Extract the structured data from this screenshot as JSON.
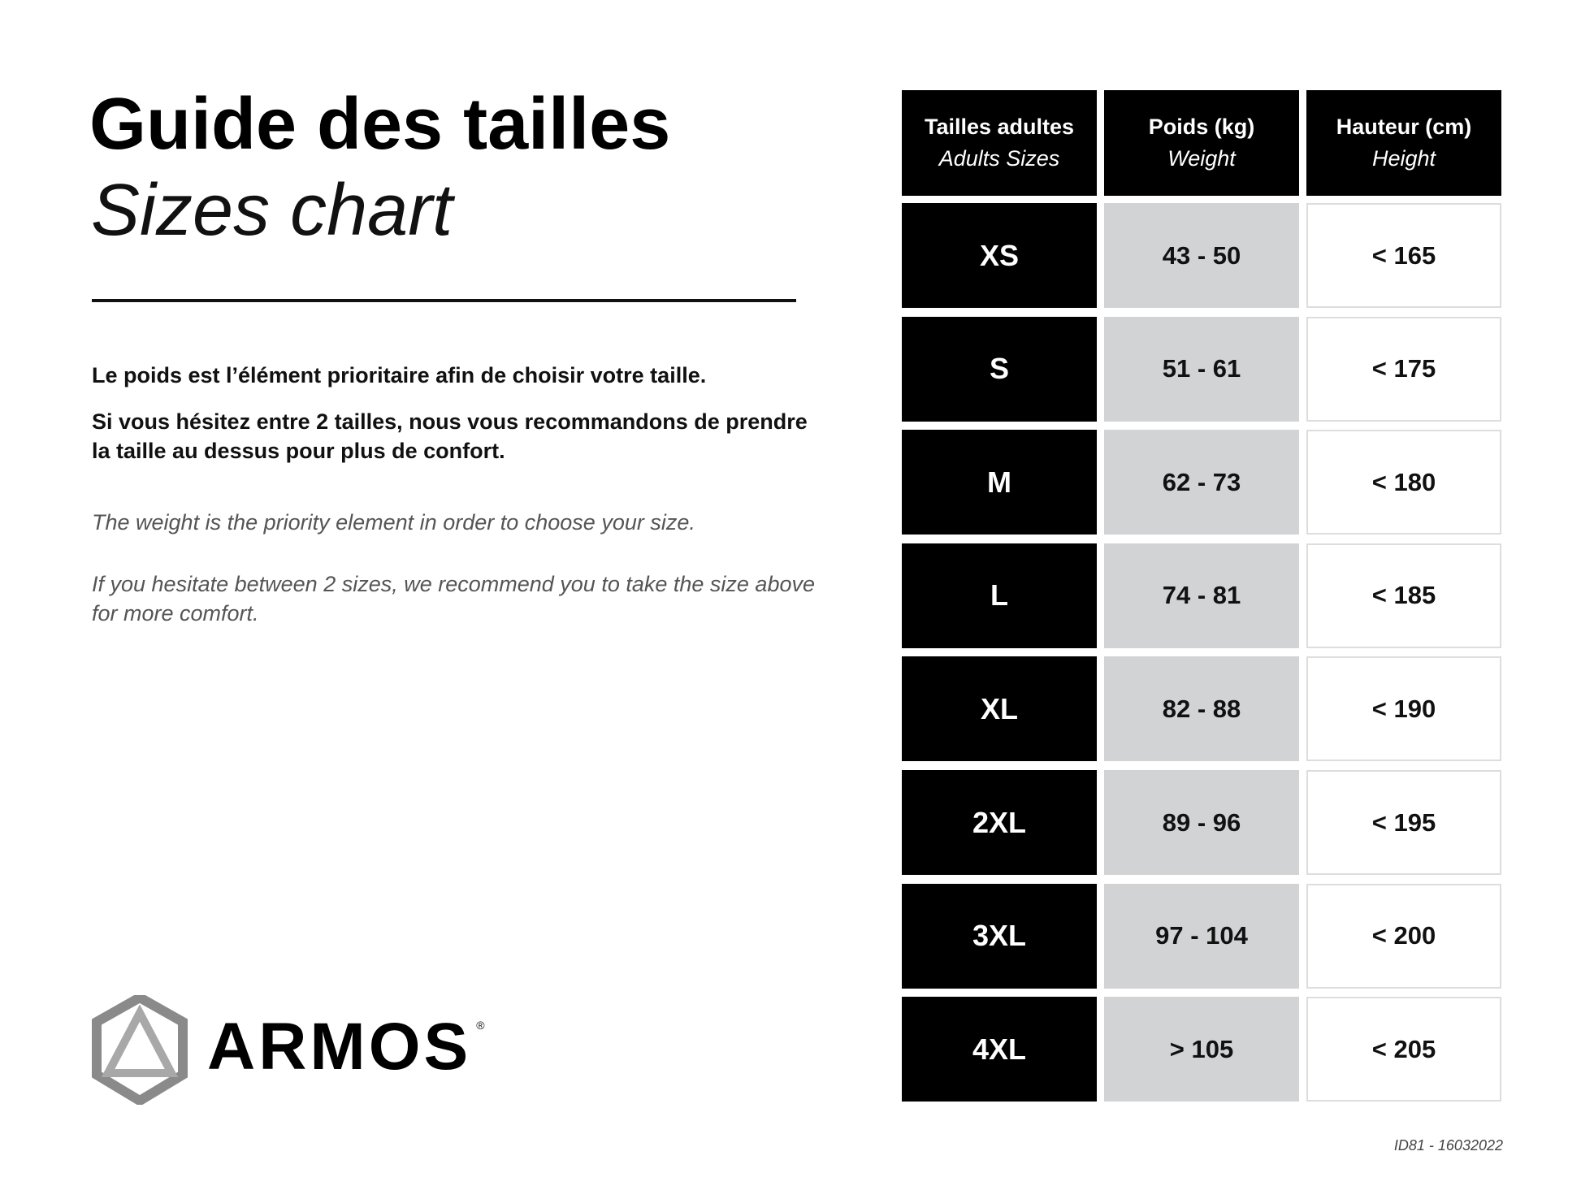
{
  "heading": {
    "title": "Guide des tailles",
    "subtitle": "Sizes chart"
  },
  "text": {
    "fr_1": "Le poids est l’élément prioritaire afin de choisir votre taille.",
    "fr_2": "Si vous hésitez entre 2 tailles, nous vous recommandons de prendre la taille au dessus pour plus de confort.",
    "en_1": "The weight is the priority element in order to choose your size.",
    "en_2": "If you hesitate between 2 sizes, we recommend you to take the size above for more comfort."
  },
  "logo": {
    "brand": "ARMOS",
    "mark": "®"
  },
  "table": {
    "headers": [
      {
        "fr": "Tailles adultes",
        "en": "Adults Sizes"
      },
      {
        "fr": "Poids (kg)",
        "en": "Weight"
      },
      {
        "fr": "Hauteur (cm)",
        "en": "Height"
      }
    ],
    "rows": [
      {
        "size": "XS",
        "weight": "43 - 50",
        "height": "< 165"
      },
      {
        "size": "S",
        "weight": "51 - 61",
        "height": "< 175"
      },
      {
        "size": "M",
        "weight": "62 - 73",
        "height": "< 180"
      },
      {
        "size": "L",
        "weight": "74 - 81",
        "height": "< 185"
      },
      {
        "size": "XL",
        "weight": "82 - 88",
        "height": "< 190"
      },
      {
        "size": "2XL",
        "weight": "89 - 96",
        "height": "< 195"
      },
      {
        "size": "3XL",
        "weight": "97 - 104",
        "height": "< 200"
      },
      {
        "size": "4XL",
        "weight": "> 105",
        "height": "< 205"
      }
    ]
  },
  "footer": {
    "id": "ID81 - 16032022"
  },
  "colors": {
    "header_bg": "#000000",
    "weight_bg": "#d2d3d5",
    "height_border": "#dddddd"
  }
}
